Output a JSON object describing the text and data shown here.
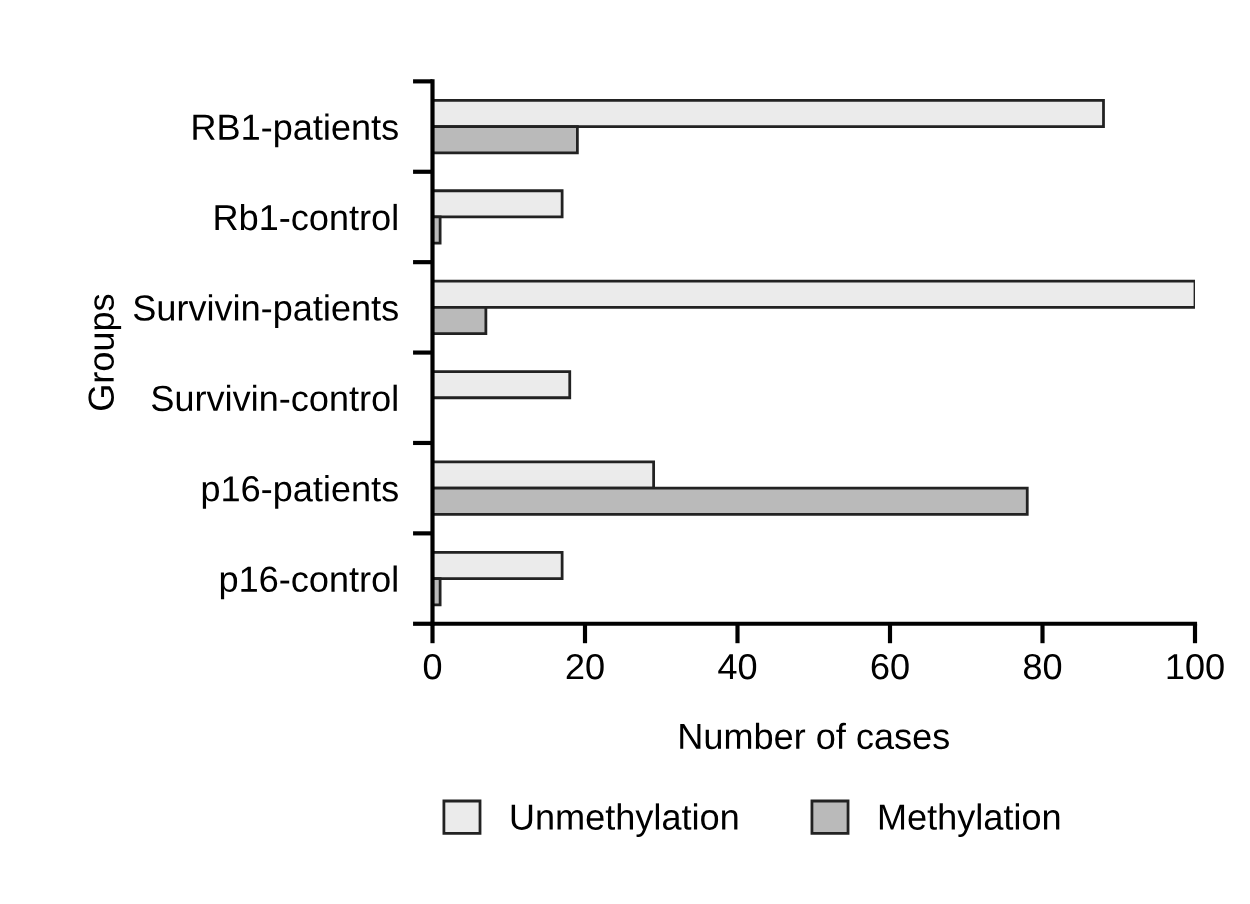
{
  "chart_data": {
    "type": "bar",
    "orientation": "horizontal",
    "xlabel": "Number of cases",
    "ylabel": "Groups",
    "categories": [
      "RB1-patients",
      "Rb1-control",
      "Survivin-patients",
      "Survivin-control",
      "p16-patients",
      "p16-control"
    ],
    "series": [
      {
        "name": "Unmethylation",
        "color": "#ebebeb",
        "values": [
          88,
          17,
          100,
          18,
          29,
          17
        ]
      },
      {
        "name": "Methylation",
        "color": "#bababa",
        "values": [
          19,
          1,
          7,
          0,
          78,
          1
        ]
      }
    ],
    "xlim": [
      0,
      100
    ],
    "xticks": [
      0,
      20,
      40,
      60,
      80,
      100
    ],
    "grid": false,
    "legend": "bottom"
  }
}
